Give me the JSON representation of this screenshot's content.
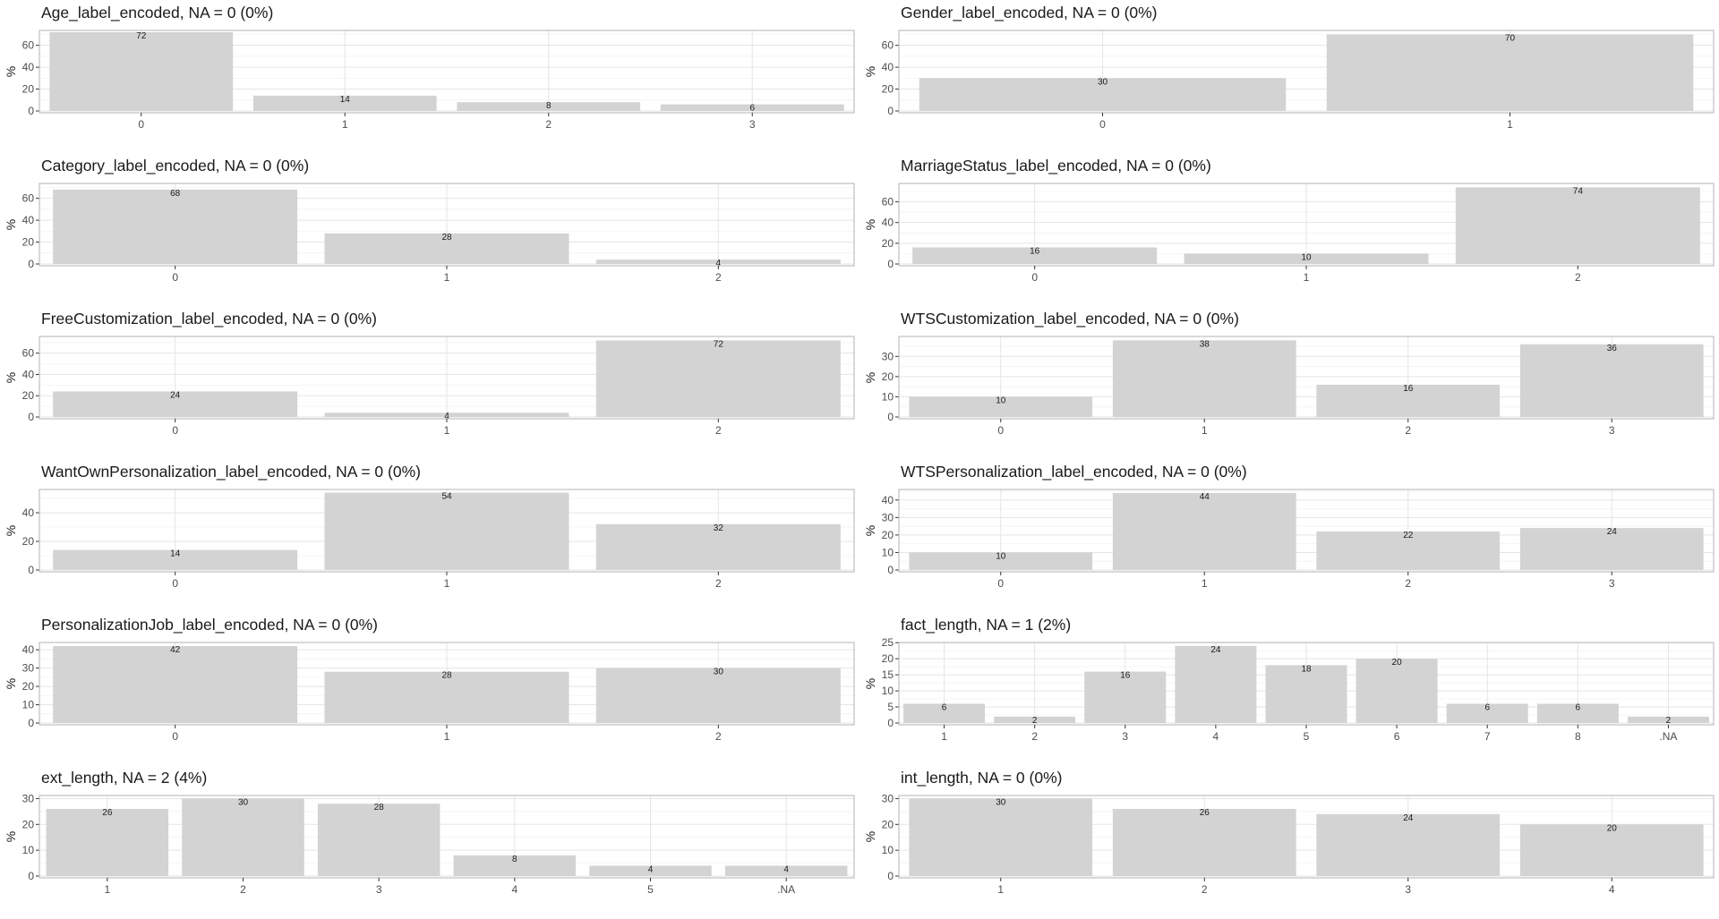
{
  "chart_data": [
    {
      "type": "bar",
      "title": "Age_label_encoded, NA = 0 (0%)",
      "ylabel": "%",
      "categories": [
        "0",
        "1",
        "2",
        "3"
      ],
      "values": [
        72,
        14,
        8,
        6
      ],
      "labels": [
        "72",
        "14",
        "8",
        "6"
      ],
      "ylim": [
        0,
        72
      ],
      "yticks": [
        0,
        20,
        40,
        60
      ],
      "grid": true
    },
    {
      "type": "bar",
      "title": "Gender_label_encoded, NA = 0 (0%)",
      "ylabel": "%",
      "categories": [
        "0",
        "1"
      ],
      "values": [
        30,
        70
      ],
      "labels": [
        "30",
        "70"
      ],
      "ylim": [
        0,
        72
      ],
      "yticks": [
        0,
        20,
        40,
        60
      ],
      "grid": true
    },
    {
      "type": "bar",
      "title": "Category_label_encoded, NA = 0 (0%)",
      "ylabel": "%",
      "categories": [
        "0",
        "1",
        "2"
      ],
      "values": [
        68,
        28,
        4
      ],
      "labels": [
        "68",
        "28",
        "4"
      ],
      "ylim": [
        0,
        72
      ],
      "yticks": [
        0,
        20,
        40,
        60
      ],
      "grid": true
    },
    {
      "type": "bar",
      "title": "MarriageStatus_label_encoded, NA = 0 (0%)",
      "ylabel": "%",
      "categories": [
        "0",
        "1",
        "2"
      ],
      "values": [
        16,
        10,
        74
      ],
      "labels": [
        "16",
        "10",
        "74"
      ],
      "ylim": [
        0,
        76
      ],
      "yticks": [
        0,
        20,
        40,
        60
      ],
      "grid": true
    },
    {
      "type": "bar",
      "title": "FreeCustomization_label_encoded, NA = 0 (0%)",
      "ylabel": "%",
      "categories": [
        "0",
        "1",
        "2"
      ],
      "values": [
        24,
        4,
        72
      ],
      "labels": [
        "24",
        "4",
        "72"
      ],
      "ylim": [
        0,
        74
      ],
      "yticks": [
        0,
        20,
        40,
        60
      ],
      "grid": true
    },
    {
      "type": "bar",
      "title": "WTSCustomization_label_encoded, NA = 0 (0%)",
      "ylabel": "%",
      "categories": [
        "0",
        "1",
        "2",
        "3"
      ],
      "values": [
        10,
        38,
        16,
        36
      ],
      "labels": [
        "10",
        "38",
        "16",
        "36"
      ],
      "ylim": [
        0,
        39
      ],
      "yticks": [
        0,
        10,
        20,
        30
      ],
      "grid": true
    },
    {
      "type": "bar",
      "title": "WantOwnPersonalization_label_encoded, NA = 0 (0%)",
      "ylabel": "%",
      "categories": [
        "0",
        "1",
        "2"
      ],
      "values": [
        14,
        54,
        32
      ],
      "labels": [
        "14",
        "54",
        "32"
      ],
      "ylim": [
        0,
        55
      ],
      "yticks": [
        0,
        20,
        40
      ],
      "grid": true
    },
    {
      "type": "bar",
      "title": "WTSPersonalization_label_encoded, NA = 0 (0%)",
      "ylabel": "%",
      "categories": [
        "0",
        "1",
        "2",
        "3"
      ],
      "values": [
        10,
        44,
        22,
        24
      ],
      "labels": [
        "10",
        "44",
        "22",
        "24"
      ],
      "ylim": [
        0,
        45
      ],
      "yticks": [
        0,
        10,
        20,
        30,
        40
      ],
      "grid": true
    },
    {
      "type": "bar",
      "title": "PersonalizationJob_label_encoded, NA = 0 (0%)",
      "ylabel": "%",
      "categories": [
        "0",
        "1",
        "2"
      ],
      "values": [
        42,
        28,
        30
      ],
      "labels": [
        "42",
        "28",
        "30"
      ],
      "ylim": [
        0,
        43
      ],
      "yticks": [
        0,
        10,
        20,
        30,
        40
      ],
      "grid": true
    },
    {
      "type": "bar",
      "title": "fact_length, NA = 1 (2%)",
      "ylabel": "%",
      "categories": [
        "1",
        "2",
        "3",
        "4",
        "5",
        "6",
        "7",
        "8",
        ".NA"
      ],
      "values": [
        6,
        2,
        16,
        24,
        18,
        20,
        6,
        6,
        2
      ],
      "labels": [
        "6",
        "2",
        "16",
        "24",
        "18",
        "20",
        "6",
        "6",
        "2"
      ],
      "ylim": [
        0,
        24.5
      ],
      "yticks": [
        0,
        5,
        10,
        15,
        20,
        25
      ],
      "grid": true
    },
    {
      "type": "bar",
      "title": "ext_length, NA = 2 (4%)",
      "ylabel": "%",
      "categories": [
        "1",
        "2",
        "3",
        "4",
        "5",
        ".NA"
      ],
      "values": [
        26,
        30,
        28,
        8,
        4,
        4
      ],
      "labels": [
        "26",
        "30",
        "28",
        "8",
        "4",
        "4"
      ],
      "ylim": [
        0,
        30.5
      ],
      "yticks": [
        0,
        10,
        20,
        30
      ],
      "grid": true
    },
    {
      "type": "bar",
      "title": "int_length, NA = 0 (0%)",
      "ylabel": "%",
      "categories": [
        "1",
        "2",
        "3",
        "4"
      ],
      "values": [
        30,
        26,
        24,
        20
      ],
      "labels": [
        "30",
        "26",
        "24",
        "20"
      ],
      "ylim": [
        0,
        30.5
      ],
      "yticks": [
        0,
        10,
        20,
        30
      ],
      "grid": true
    }
  ],
  "colors": {
    "bar": "#d3d3d3",
    "grid_major": "#e5e5e5",
    "grid_minor": "#f0f0f0",
    "panel_border": "#b3b3b3",
    "text": "#1a1a1a",
    "tick_text": "#4d4d4d"
  }
}
